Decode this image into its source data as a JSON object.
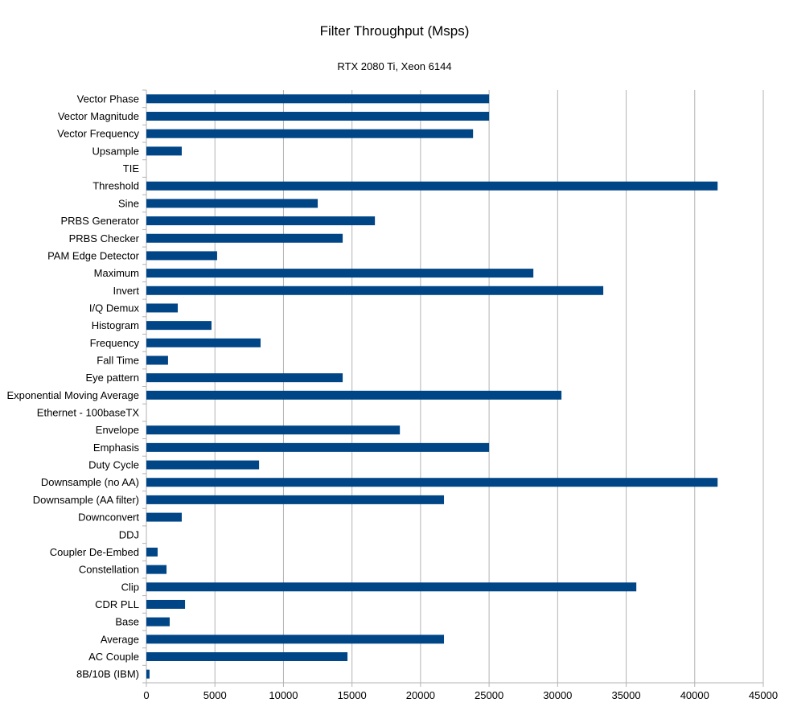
{
  "chart_data": {
    "type": "bar",
    "orientation": "horizontal",
    "title": "Filter Throughput (Msps)",
    "subtitle": "RTX 2080 Ti, Xeon 6144",
    "xlim": [
      0,
      45000
    ],
    "xticks": [
      "0",
      "5000",
      "10000",
      "15000",
      "20000",
      "25000",
      "30000",
      "35000",
      "40000",
      "45000"
    ],
    "grid": "vertical",
    "legend": "none",
    "bar_color": "#004586",
    "categories": [
      "Vector Phase",
      "Vector Magnitude",
      "Vector Frequency",
      "Upsample",
      "TIE",
      "Threshold",
      "Sine",
      "PRBS Generator",
      "PRBS Checker",
      "PAM Edge Detector",
      "Maximum",
      "Invert",
      "I/Q Demux",
      "Histogram",
      "Frequency",
      "Fall Time",
      "Eye pattern",
      "Exponential Moving Average",
      "Ethernet - 100baseTX",
      "Envelope",
      "Emphasis",
      "Duty Cycle",
      "Downsample (no AA)",
      "Downsample (AA filter)",
      "Downconvert",
      "DDJ",
      "Coupler De-Embed",
      "Constellation",
      "Clip",
      "CDR PLL",
      "Base",
      "Average",
      "AC Couple",
      "8B/10B (IBM)"
    ],
    "values": [
      25000,
      25000,
      23830,
      2580,
      0,
      41670,
      12500,
      16670,
      14320,
      5160,
      28230,
      33330,
      2290,
      4750,
      8330,
      1580,
      14320,
      30280,
      0,
      18490,
      25000,
      8220,
      41670,
      21710,
      2580,
      0,
      820,
      1470,
      35740,
      2820,
      1700,
      21710,
      14670,
      230
    ]
  }
}
